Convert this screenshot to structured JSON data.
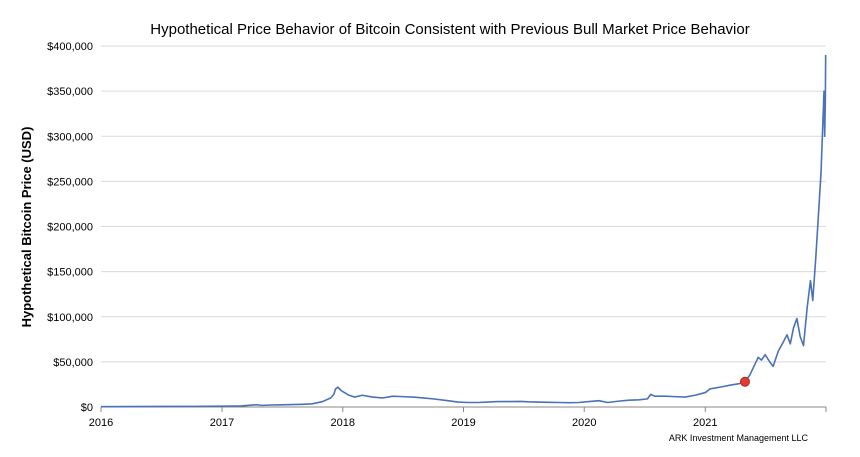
{
  "chart_data": {
    "type": "line",
    "title": "Hypothetical Price Behavior of Bitcoin Consistent with Previous Bull Market Price Behavior",
    "xlabel": "",
    "ylabel": "Hypothetical Bitcoin Price (USD)",
    "source": "ARK Investment Management LLC",
    "xlim": [
      "2016-01-01",
      "2022-01-01"
    ],
    "ylim": [
      0,
      400000
    ],
    "x_ticks": [
      "2016",
      "2017",
      "2018",
      "2019",
      "2020",
      "2021"
    ],
    "y_ticks": [
      "$0",
      "$50,000",
      "$100,000",
      "$150,000",
      "$200,000",
      "$250,000",
      "$300,000",
      "$350,000",
      "$400,000"
    ],
    "grid": "horizontal",
    "series_color": "#4a72b8",
    "marker_color": "#e03c31",
    "series": [
      {
        "x": [
          "2016-01-01",
          "2016-04-01",
          "2016-07-01",
          "2016-10-01",
          "2017-01-01",
          "2017-03-01",
          "2017-04-15",
          "2017-05-01",
          "2017-06-01",
          "2017-07-01",
          "2017-08-01",
          "2017-09-01",
          "2017-10-01",
          "2017-11-01",
          "2017-11-25",
          "2017-12-05",
          "2017-12-10",
          "2017-12-17",
          "2017-12-28",
          "2018-01-06",
          "2018-01-20",
          "2018-02-06",
          "2018-03-01",
          "2018-04-01",
          "2018-05-01",
          "2018-06-01",
          "2018-07-01",
          "2018-08-01",
          "2018-09-01",
          "2018-10-01",
          "2018-11-15",
          "2018-12-15",
          "2019-01-15",
          "2019-02-15",
          "2019-03-15",
          "2019-04-15",
          "2019-05-15",
          "2019-06-26",
          "2019-07-15",
          "2019-08-15",
          "2019-09-15",
          "2019-10-15",
          "2019-11-15",
          "2019-12-15",
          "2020-01-15",
          "2020-02-15",
          "2020-03-12",
          "2020-04-15",
          "2020-05-15",
          "2020-06-15",
          "2020-07-10",
          "2020-07-20",
          "2020-08-01",
          "2020-09-01",
          "2020-10-01",
          "2020-11-01",
          "2020-12-01",
          "2021-01-01",
          "2021-01-15",
          "2021-02-15",
          "2021-03-15",
          "2021-04-15",
          "2021-05-01",
          "2021-05-15",
          "2021-06-01",
          "2021-06-10",
          "2021-06-20",
          "2021-07-01",
          "2021-07-15",
          "2021-07-25",
          "2021-08-10",
          "2021-08-25",
          "2021-09-05",
          "2021-09-15",
          "2021-09-25",
          "2021-10-05",
          "2021-10-15",
          "2021-10-25",
          "2021-11-05",
          "2021-11-15",
          "2021-11-22",
          "2021-12-01",
          "2021-12-07",
          "2021-12-12",
          "2021-12-17",
          "2021-12-20",
          "2021-12-23",
          "2021-12-26",
          "2021-12-28",
          "2021-12-30",
          "2021-12-31"
        ],
        "y": [
          400,
          500,
          600,
          700,
          900,
          1200,
          2500,
          1800,
          2200,
          2400,
          2700,
          3000,
          3500,
          6000,
          10000,
          14000,
          20000,
          22000,
          18000,
          16000,
          13000,
          11000,
          13000,
          11000,
          10000,
          12000,
          11500,
          11000,
          10000,
          9000,
          7000,
          5500,
          5000,
          5000,
          5500,
          6000,
          6000,
          6200,
          5800,
          5500,
          5200,
          5000,
          4800,
          5000,
          6000,
          7000,
          5000,
          6500,
          7500,
          8000,
          9000,
          14000,
          12000,
          12000,
          11500,
          11000,
          13000,
          16000,
          20000,
          22000,
          24000,
          26000,
          28000,
          35000,
          48000,
          55000,
          52000,
          58000,
          50000,
          45000,
          62000,
          72000,
          80000,
          70000,
          88000,
          98000,
          78000,
          68000,
          110000,
          140000,
          118000,
          165000,
          200000,
          230000,
          260000,
          290000,
          320000,
          350000,
          300000,
          340000,
          390000
        ]
      }
    ],
    "annotation": {
      "label": "",
      "x": "2021-05-01",
      "y": 28000
    }
  }
}
